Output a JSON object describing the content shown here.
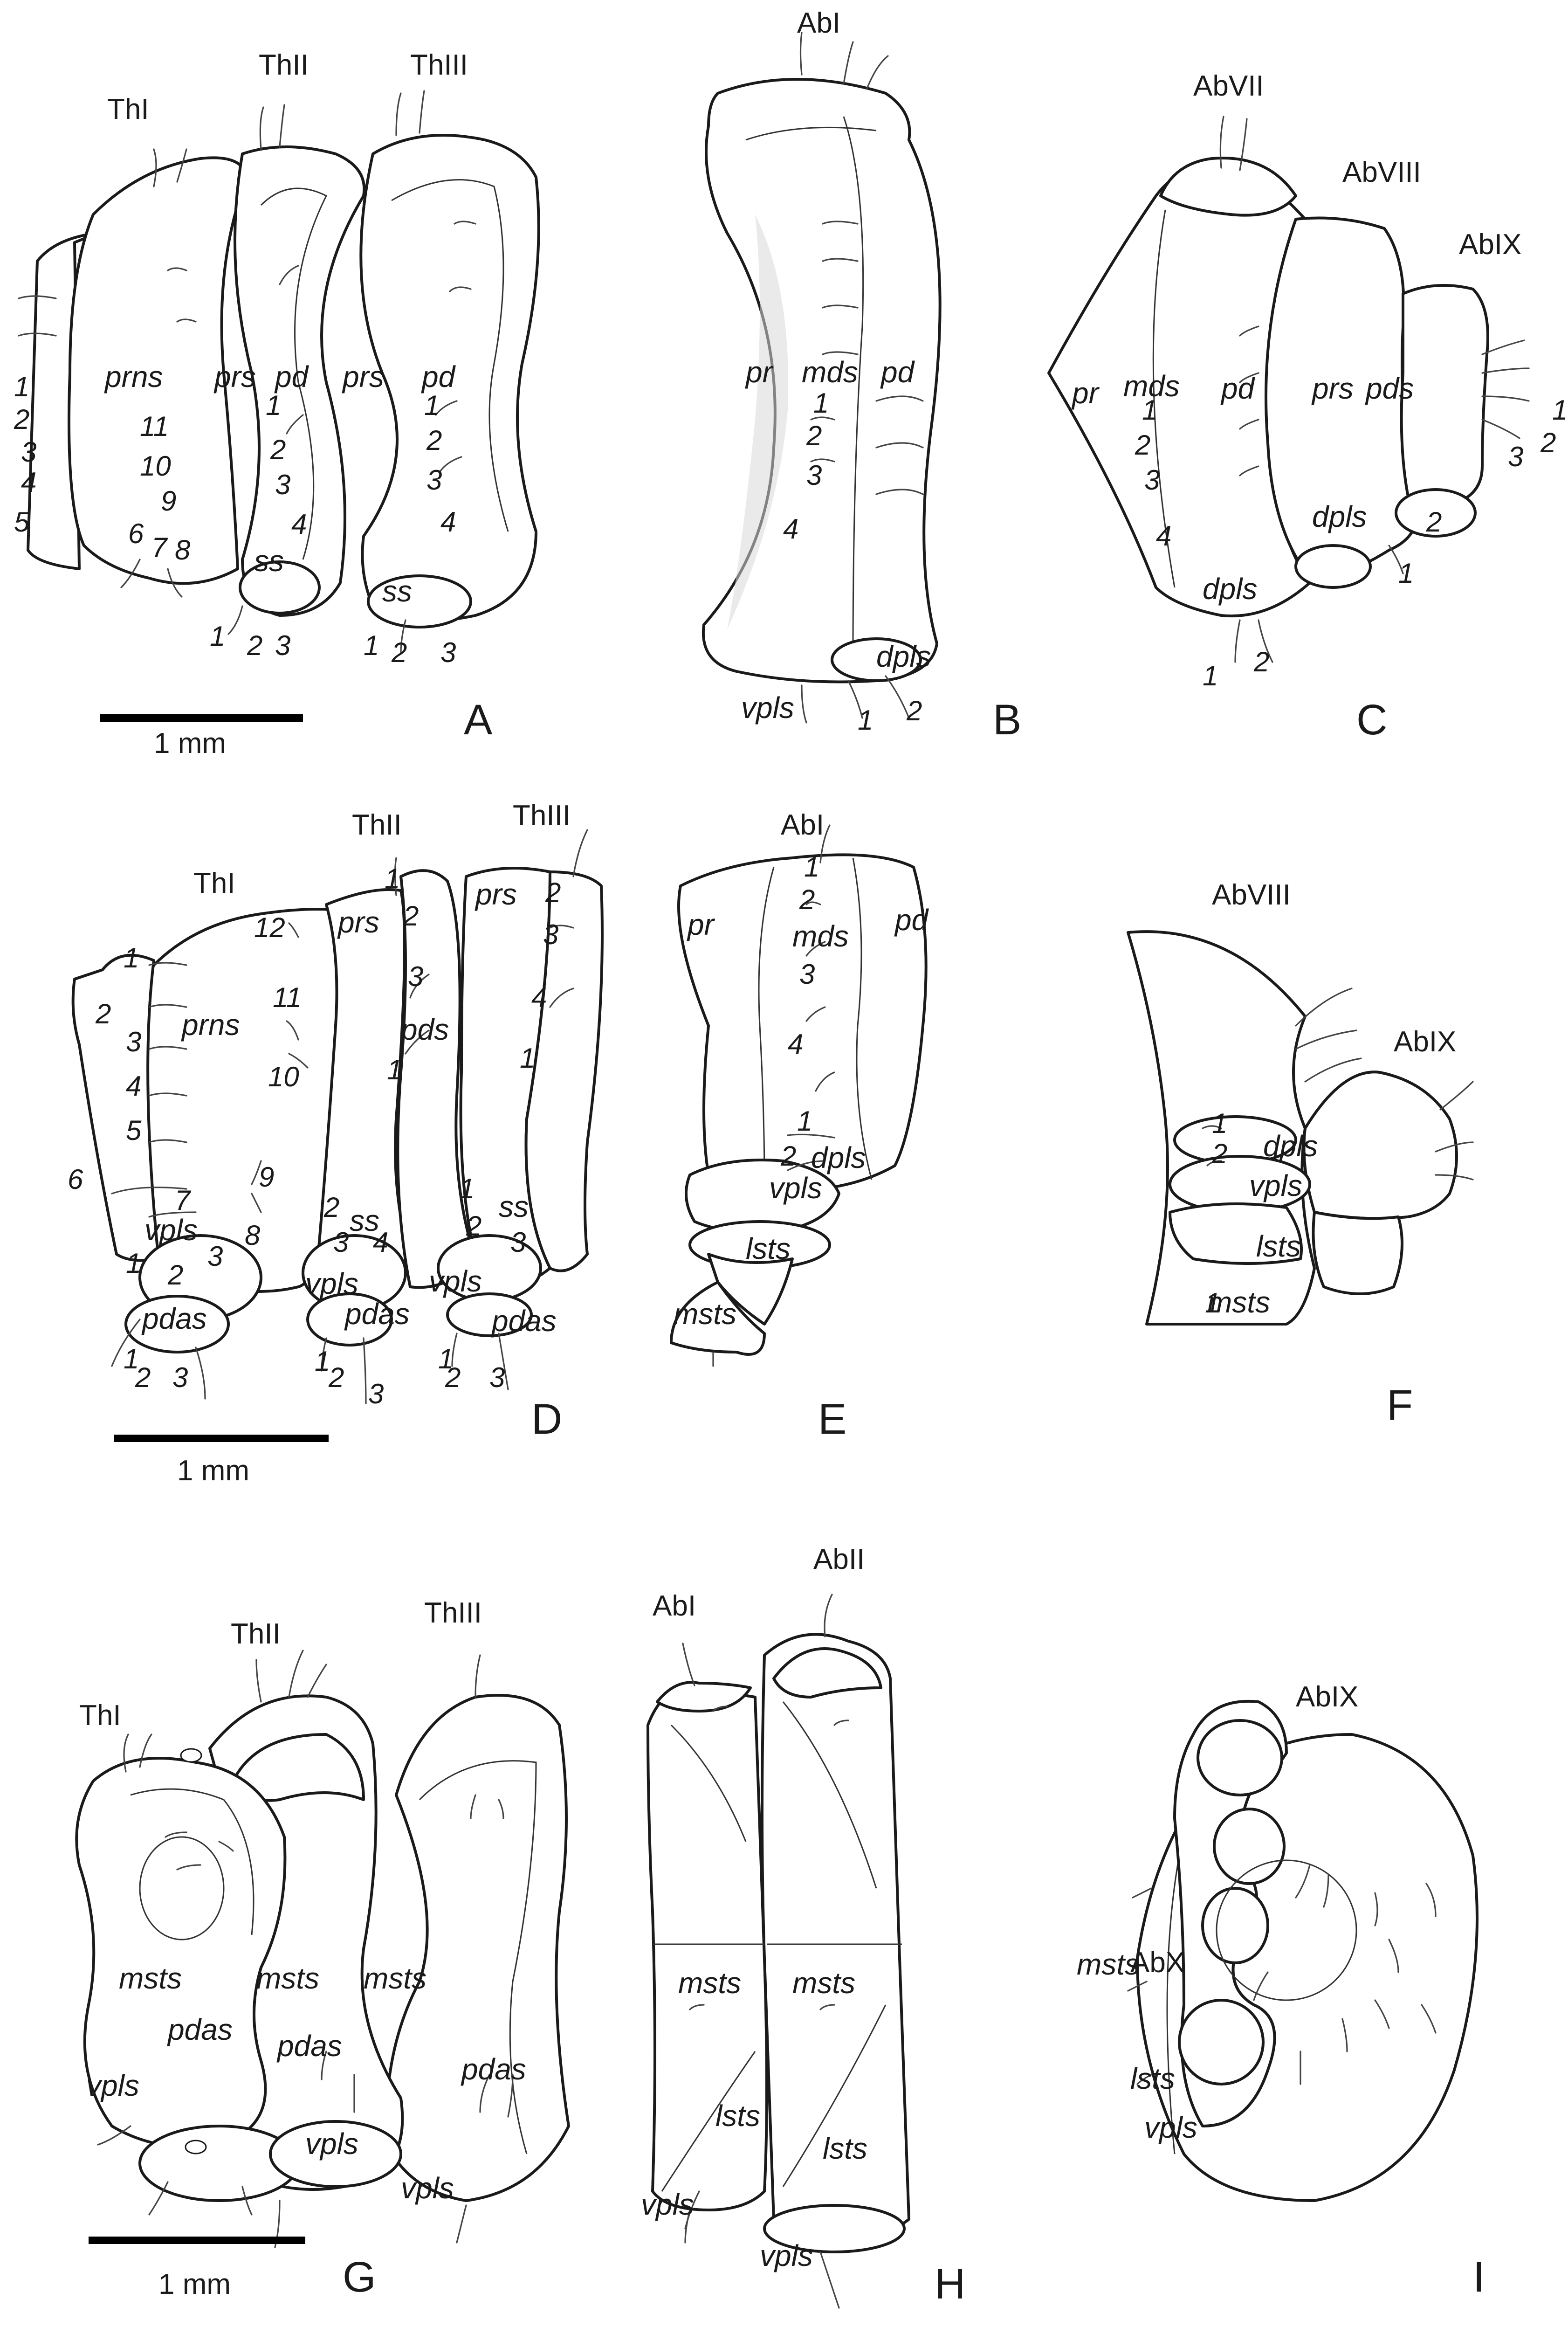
{
  "scale_bar_label": "1 mm",
  "panels": {
    "A": {
      "letter": "A",
      "segments": [
        "ThI",
        "ThII",
        "ThIII"
      ],
      "regions": [
        "prns",
        "prs",
        "pd",
        "prs",
        "pd",
        "ss",
        "ss"
      ],
      "numbers": [
        "1",
        "2",
        "3",
        "4",
        "5",
        "11",
        "10",
        "9",
        "6",
        "7",
        "8",
        "1",
        "2",
        "3",
        "4",
        "1",
        "2",
        "3",
        "4",
        "1",
        "2",
        "3",
        "1",
        "2",
        "3"
      ]
    },
    "B": {
      "letter": "B",
      "segments": [
        "AbI"
      ],
      "regions": [
        "pr",
        "mds",
        "pd",
        "dpls",
        "vpls"
      ],
      "numbers": [
        "1",
        "2",
        "3",
        "4",
        "1",
        "2"
      ]
    },
    "C": {
      "letter": "C",
      "segments": [
        "AbVII",
        "AbVIII",
        "AbIX"
      ],
      "regions": [
        "pr",
        "mds",
        "pd",
        "prs",
        "pds",
        "dpls",
        "dpls"
      ],
      "numbers": [
        "1",
        "2",
        "3",
        "4",
        "1",
        "2",
        "3",
        "2",
        "1",
        "1",
        "2"
      ]
    },
    "D": {
      "letter": "D",
      "segments": [
        "ThI",
        "ThII",
        "ThIII"
      ],
      "regions": [
        "prns",
        "prs",
        "pds",
        "prs",
        "ss",
        "ss",
        "vpls",
        "vpls",
        "vpls",
        "pdas",
        "pdas",
        "pdas"
      ],
      "numbers": [
        "12",
        "11",
        "10",
        "1",
        "2",
        "3",
        "4",
        "5",
        "6",
        "7",
        "9",
        "8",
        "1",
        "2",
        "3",
        "1",
        "2",
        "3",
        "1",
        "2",
        "3",
        "4",
        "1",
        "2",
        "3",
        "4",
        "1",
        "2",
        "3",
        "1",
        "2",
        "3",
        "1",
        "2",
        "3",
        "1",
        "2",
        "3"
      ]
    },
    "E": {
      "letter": "E",
      "segments": [
        "AbI"
      ],
      "regions": [
        "pr",
        "mds",
        "pd",
        "dpls",
        "vpls",
        "lsts",
        "msts"
      ],
      "numbers": [
        "1",
        "2",
        "3",
        "4",
        "1",
        "2"
      ]
    },
    "F": {
      "letter": "F",
      "segments": [
        "AbVIII",
        "AbIX"
      ],
      "regions": [
        "dpls",
        "vpls",
        "lsts",
        "msts"
      ],
      "numbers": [
        "1",
        "2",
        "1"
      ]
    },
    "G": {
      "letter": "G",
      "segments": [
        "ThI",
        "ThII",
        "ThIII"
      ],
      "regions": [
        "msts",
        "msts",
        "msts",
        "pdas",
        "pdas",
        "pdas",
        "vpls",
        "vpls",
        "vpls"
      ]
    },
    "H": {
      "letter": "H",
      "segments": [
        "AbI",
        "AbII"
      ],
      "regions": [
        "msts",
        "msts",
        "lsts",
        "lsts",
        "vpls",
        "vpls"
      ]
    },
    "I": {
      "letter": "I",
      "segments": [
        "AbIX",
        "AbX"
      ],
      "regions": [
        "msts",
        "lsts",
        "vpls"
      ]
    }
  }
}
